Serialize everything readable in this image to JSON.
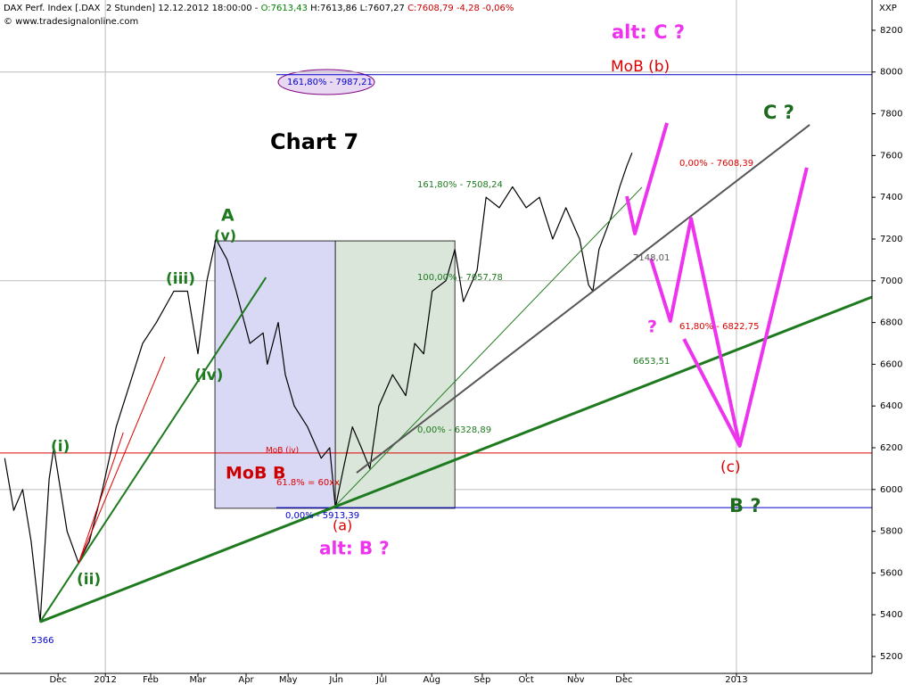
{
  "header": {
    "parts": [
      {
        "text": "DAX Perf. Index [.DAX  2 Stunden] 12.12.2012 18:00:00 - ",
        "color": "#000000"
      },
      {
        "text": "O:7613,43",
        "color": "#008000"
      },
      {
        "text": " H:7613,86 L:7607,27 ",
        "color": "#000000"
      },
      {
        "text": "C:7608,79 -4,28 -0,06%",
        "color": "#cc0000"
      }
    ],
    "copyright": "© www.tradesignalonline.com",
    "symbol": "XXP"
  },
  "chart_data": {
    "type": "line",
    "xlim": [
      -0.23,
      18.23
    ],
    "ylim": [
      5119,
      8345
    ],
    "xticks": [
      {
        "value": 1,
        "label": "Dec"
      },
      {
        "value": 2,
        "label": "2012"
      },
      {
        "value": 2.96,
        "label": "Feb"
      },
      {
        "value": 3.96,
        "label": "Mar"
      },
      {
        "value": 4.98,
        "label": "Apr"
      },
      {
        "value": 5.87,
        "label": "May"
      },
      {
        "value": 6.89,
        "label": "Jun"
      },
      {
        "value": 7.85,
        "label": "Jul"
      },
      {
        "value": 8.91,
        "label": "Aug"
      },
      {
        "value": 9.98,
        "label": "Sep"
      },
      {
        "value": 10.91,
        "label": "Oct"
      },
      {
        "value": 11.96,
        "label": "Nov"
      },
      {
        "value": 12.98,
        "label": "Dec"
      },
      {
        "value": 15.36,
        "label": "2013"
      }
    ],
    "yticks": [
      5200,
      5400,
      5600,
      5800,
      6000,
      6200,
      6400,
      6600,
      6800,
      7000,
      7200,
      7400,
      7600,
      7800,
      8000,
      8200
    ],
    "ygrid": [
      6000,
      7000,
      8000
    ],
    "xgrid": [
      2,
      15.36
    ],
    "series": [
      {
        "color": "#000000",
        "x": [
          -0.13,
          0.06,
          0.25,
          0.43,
          0.62,
          0.81,
          0.91,
          1.19,
          1.43,
          1.66,
          1.94,
          2.23,
          2.51,
          2.79,
          3.08,
          3.45,
          3.74,
          3.96,
          4.15,
          4.34,
          4.58,
          4.77,
          5.06,
          5.34,
          5.43,
          5.66,
          5.81,
          6.0,
          6.28,
          6.57,
          6.75,
          6.87,
          7.04,
          7.23,
          7.42,
          7.6,
          7.79,
          8.08,
          8.36,
          8.55,
          8.74,
          8.92,
          9.21,
          9.4,
          9.58,
          9.87,
          10.06,
          10.34,
          10.62,
          10.91,
          11.19,
          11.47,
          11.75,
          12.04,
          12.23,
          12.32,
          12.45,
          12.7,
          12.89,
          13.04,
          13.15
        ],
        "values": [
          6150,
          5900,
          6000,
          5750,
          5366,
          6050,
          6200,
          5800,
          5650,
          5750,
          6000,
          6300,
          6500,
          6700,
          6800,
          6950,
          6950,
          6650,
          7000,
          7200,
          7100,
          6950,
          6700,
          6750,
          6600,
          6800,
          6550,
          6400,
          6300,
          6150,
          6200,
          5913,
          6100,
          6300,
          6200,
          6100,
          6400,
          6550,
          6450,
          6700,
          6650,
          6950,
          7000,
          7150,
          6900,
          7050,
          7400,
          7350,
          7450,
          7350,
          7400,
          7200,
          7350,
          7200,
          6980,
          6950,
          7150,
          7300,
          7450,
          7550,
          7613
        ]
      }
    ],
    "boxes": [
      {
        "x": [
          4.32,
          6.87
        ],
        "y": [
          5910,
          7191
        ],
        "color": "#d9d9f5"
      },
      {
        "x": [
          6.87,
          9.4
        ],
        "y": [
          5910,
          7191
        ],
        "color": "#d9e6d9"
      }
    ],
    "levels": [
      {
        "value": 7987.21,
        "x_from": 5.62,
        "color": "#0000cc"
      },
      {
        "value": 6175,
        "color": "#dd0000"
      },
      {
        "value": 5913.39,
        "x_from": 5.62,
        "color": "#0000cc"
      }
    ],
    "lines": [
      {
        "color": "#1e7a1e",
        "width": 3,
        "x": [
          0.62,
          18.23
        ],
        "y": [
          5366,
          6922
        ]
      },
      {
        "color": "#1e7a1e",
        "width": 2,
        "x": [
          0.62,
          5.4
        ],
        "y": [
          5366,
          7016
        ]
      },
      {
        "color": "#dd0000",
        "width": 1,
        "x": [
          1.43,
          3.26
        ],
        "y": [
          5645,
          6636
        ]
      },
      {
        "color": "#dd0000",
        "width": 1,
        "x": [
          1.43,
          2.38
        ],
        "y": [
          5645,
          6273
        ]
      },
      {
        "color": "#1e7a1e",
        "width": 1,
        "x": [
          6.87,
          13.36
        ],
        "y": [
          5922,
          7448
        ]
      },
      {
        "color": "#555555",
        "width": 2,
        "x": [
          7.32,
          16.91
        ],
        "y": [
          6080,
          7747
        ]
      },
      {
        "color": "#ee33ee",
        "width": 4,
        "x": [
          13.04,
          13.21,
          13.89
        ],
        "y": [
          7405,
          7226,
          7756
        ]
      },
      {
        "color": "#ee33ee",
        "width": 4,
        "x": [
          13.55,
          13.96,
          14.4,
          15.43,
          16.85
        ],
        "y": [
          7106,
          6807,
          7298,
          6209,
          7542
        ]
      },
      {
        "color": "#ee33ee",
        "width": 4,
        "x": [
          14.25,
          15.43
        ],
        "y": [
          6721,
          6209
        ]
      }
    ],
    "annotations": [
      {
        "text": "alt: C ?",
        "color": "#ee33ee"
      },
      {
        "text": "MoB (b)",
        "color": "#dd0000"
      },
      {
        "text": "C ?",
        "color": "#1e6a1e"
      },
      {
        "text": "Chart 7",
        "color": "#000000"
      },
      {
        "text": "A",
        "color": "#1e7a1e"
      },
      {
        "text": "(v)",
        "color": "#1e7a1e"
      },
      {
        "text": "(iii)",
        "color": "#1e7a1e"
      },
      {
        "text": "(iv)",
        "color": "#1e7a1e"
      },
      {
        "text": "(i)",
        "color": "#1e7a1e"
      },
      {
        "text": "(ii)",
        "color": "#1e7a1e"
      },
      {
        "text": "MoB B",
        "color": "#cc0000"
      },
      {
        "text": "(a)",
        "color": "#dd0000"
      },
      {
        "text": "alt: B ?",
        "color": "#ee33ee"
      },
      {
        "text": "?",
        "color": "#ee33ee"
      },
      {
        "text": "(c)",
        "color": "#dd0000"
      },
      {
        "text": "B ?",
        "color": "#1e6a1e"
      },
      {
        "text": "5366",
        "color": "#0000cc"
      },
      {
        "text": "7148,01",
        "color": "#555555"
      },
      {
        "text": "6653,51",
        "color": "#1e7a1e"
      },
      {
        "text": "161,80% - 7508,24",
        "color": "#1e7a1e"
      },
      {
        "text": "100,00% - 7057,78",
        "color": "#1e7a1e"
      },
      {
        "text": "0,00% - 6328,89",
        "color": "#1e7a1e"
      },
      {
        "text": "0,00% - 7608,39",
        "color": "#dd0000"
      },
      {
        "text": "61,80% - 6822,75",
        "color": "#dd0000"
      },
      {
        "text": "MoB (iv)",
        "color": "#dd0000"
      },
      {
        "text": "61.8% = 60xx",
        "color": "#dd0000"
      },
      {
        "text": "161,80% - 7987,21",
        "color": "#0000cc"
      },
      {
        "text": "0,00% - 5913,39",
        "color": "#0000cc"
      }
    ]
  }
}
